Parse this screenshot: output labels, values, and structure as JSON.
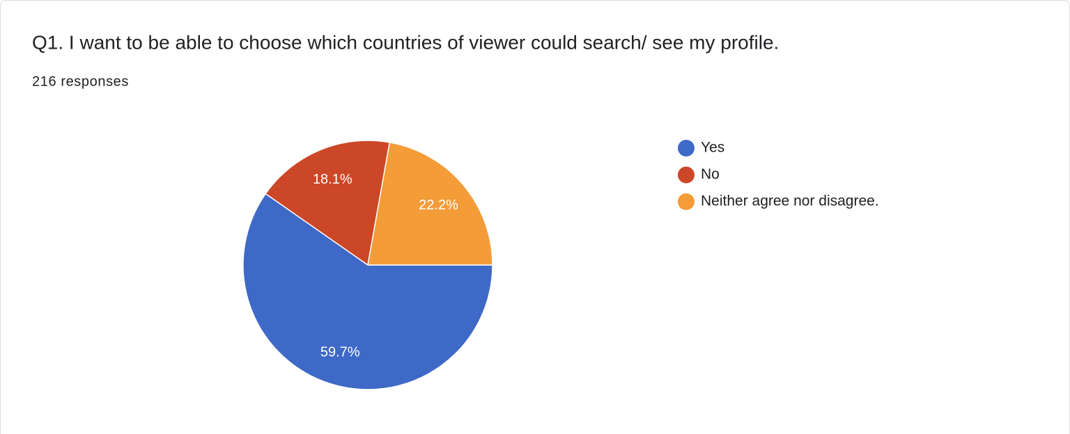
{
  "chart_data": {
    "type": "pie",
    "title": "Q1. I want to be able to choose which countries of viewer could search/ see my profile.",
    "subtitle": "216 responses",
    "categories": [
      "Yes",
      "No",
      "Neither agree nor disagree."
    ],
    "values": [
      59.7,
      18.1,
      22.2
    ],
    "value_labels": [
      "59.7%",
      "18.1%",
      "22.2%"
    ],
    "colors": [
      "#3e69c6",
      "#cc4727",
      "#f39c38"
    ]
  }
}
